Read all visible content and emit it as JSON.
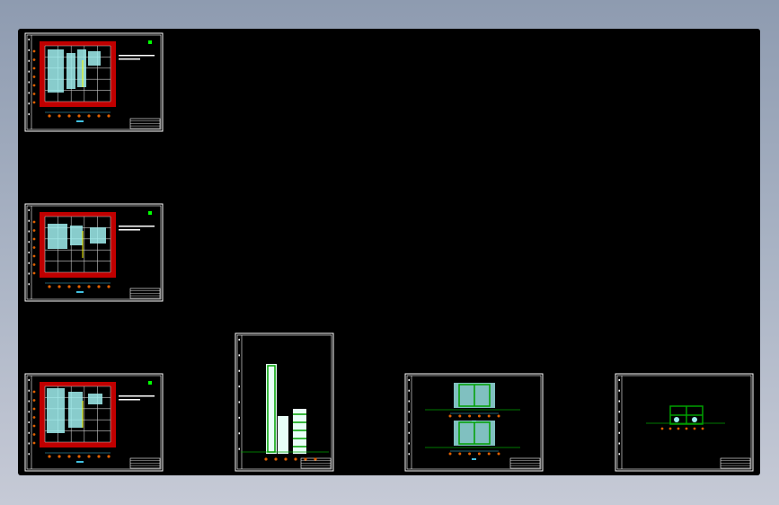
{
  "app": {
    "type": "cad-drawing-viewer",
    "background": "black"
  },
  "colors": {
    "frame": "#ffffff",
    "wall": "#c00000",
    "grid": "#c8c8c8",
    "equipment": "#a0f0f0",
    "pipe": "#40c0e0",
    "structure": "#00a000",
    "axis_bubble": "#e06000",
    "highlight": "#ffff00",
    "north_mark": "#00ff00"
  },
  "sheets": [
    {
      "id": "plan-1",
      "kind": "floor-plan"
    },
    {
      "id": "plan-2",
      "kind": "floor-plan"
    },
    {
      "id": "plan-3",
      "kind": "floor-plan"
    },
    {
      "id": "tower-elevation",
      "kind": "elevation-tall"
    },
    {
      "id": "section-double",
      "kind": "section-double"
    },
    {
      "id": "section-single",
      "kind": "section-single"
    }
  ]
}
